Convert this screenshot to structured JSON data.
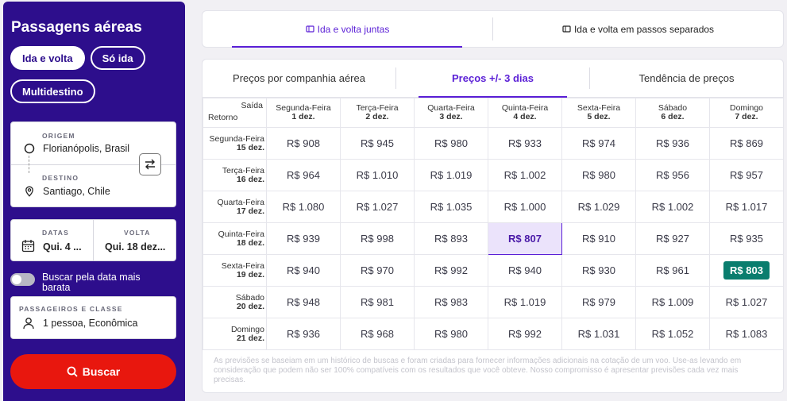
{
  "sidebar": {
    "title": "Passagens aéreas",
    "trip_types": [
      "Ida e volta",
      "Só ida"
    ],
    "multi_label": "Multidestino",
    "origin": {
      "label": "ORIGEM",
      "value": "Florianópolis, Brasil"
    },
    "destination": {
      "label": "DESTINO",
      "value": "Santiago, Chile"
    },
    "dates": {
      "label": "DATAS",
      "value": "Qui. 4 ..."
    },
    "return": {
      "label": "VOLTA",
      "value": "Qui. 18 dez..."
    },
    "cheapest_toggle": "Buscar pela data mais barata",
    "passengers": {
      "label": "PASSAGEIROS E CLASSE",
      "value": "1 pessoa, Econômica"
    },
    "search_button": "Buscar"
  },
  "top_tabs": [
    "Ida e volta juntas",
    "Ida e volta em passos separados"
  ],
  "price_tabs": [
    "Preços por companhia aérea",
    "Preços +/- 3 dias",
    "Tendência de preços"
  ],
  "grid": {
    "corner_out": "Saída",
    "corner_ret": "Retorno",
    "columns": [
      {
        "day": "Segunda-Feira",
        "date": "1 dez."
      },
      {
        "day": "Terça-Feira",
        "date": "2 dez."
      },
      {
        "day": "Quarta-Feira",
        "date": "3 dez."
      },
      {
        "day": "Quinta-Feira",
        "date": "4 dez."
      },
      {
        "day": "Sexta-Feira",
        "date": "5 dez."
      },
      {
        "day": "Sábado",
        "date": "6 dez."
      },
      {
        "day": "Domingo",
        "date": "7 dez."
      }
    ],
    "rows": [
      {
        "day": "Segunda-Feira",
        "date": "15 dez.",
        "prices": [
          "R$ 908",
          "R$ 945",
          "R$ 980",
          "R$ 933",
          "R$ 974",
          "R$ 936",
          "R$ 869"
        ]
      },
      {
        "day": "Terça-Feira",
        "date": "16 dez.",
        "prices": [
          "R$ 964",
          "R$ 1.010",
          "R$ 1.019",
          "R$ 1.002",
          "R$ 980",
          "R$ 956",
          "R$ 957"
        ]
      },
      {
        "day": "Quarta-Feira",
        "date": "17 dez.",
        "prices": [
          "R$ 1.080",
          "R$ 1.027",
          "R$ 1.035",
          "R$ 1.000",
          "R$ 1.029",
          "R$ 1.002",
          "R$ 1.017"
        ]
      },
      {
        "day": "Quinta-Feira",
        "date": "18 dez.",
        "prices": [
          "R$ 939",
          "R$ 998",
          "R$ 893",
          "R$ 807",
          "R$ 910",
          "R$ 927",
          "R$ 935"
        ]
      },
      {
        "day": "Sexta-Feira",
        "date": "19 dez.",
        "prices": [
          "R$ 940",
          "R$ 970",
          "R$ 992",
          "R$ 940",
          "R$ 930",
          "R$ 961",
          "R$ 803"
        ]
      },
      {
        "day": "Sábado",
        "date": "20 dez.",
        "prices": [
          "R$ 948",
          "R$ 981",
          "R$ 983",
          "R$ 1.019",
          "R$ 979",
          "R$ 1.009",
          "R$ 1.027"
        ]
      },
      {
        "day": "Domingo",
        "date": "21 dez.",
        "prices": [
          "R$ 936",
          "R$ 968",
          "R$ 980",
          "R$ 992",
          "R$ 1.031",
          "R$ 1.052",
          "R$ 1.083"
        ]
      }
    ],
    "selected_cell": [
      3,
      3
    ],
    "best_cell": [
      4,
      6
    ]
  },
  "footnote": "As previsões se baseiam em um histórico de buscas e foram criadas para fornecer informações adicionais na cotação de um voo. Use-as levando em consideração que podem não ser 100% compatíveis com os resultados que você obteve. Nosso compromisso é apresentar previsões cada vez mais precisas.",
  "colors": {
    "sidebar": "#2d0e8c",
    "accent": "#5a1fd6",
    "search": "#e8170e",
    "best": "#0a7d6e"
  }
}
